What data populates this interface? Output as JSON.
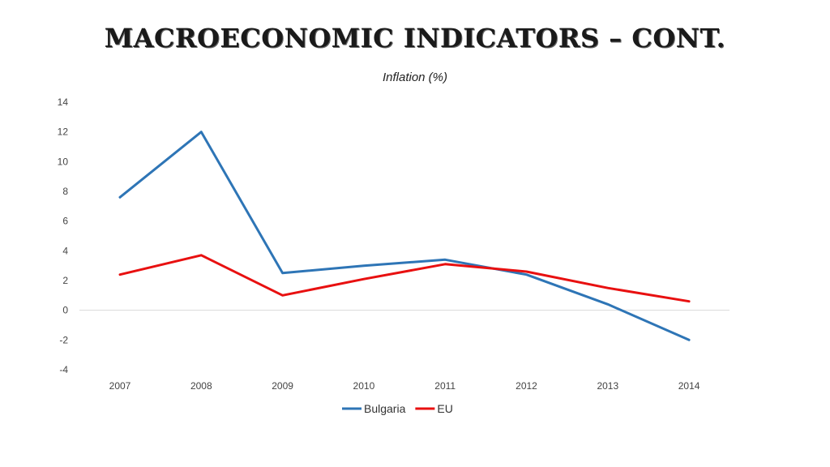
{
  "slide": {
    "title": "Macroeconomic indicators – cont."
  },
  "chart_data": {
    "type": "line",
    "title": "Inflation (%)",
    "xlabel": "",
    "ylabel": "",
    "categories": [
      "2007",
      "2008",
      "2009",
      "2010",
      "2011",
      "2012",
      "2013",
      "2014"
    ],
    "ylim": [
      -4,
      14
    ],
    "yticks": [
      -4,
      -2,
      0,
      2,
      4,
      6,
      8,
      10,
      12,
      14
    ],
    "grid": false,
    "legend_position": "bottom",
    "series": [
      {
        "name": "Bulgaria",
        "color": "#2e75b6",
        "values": [
          7.6,
          12.0,
          2.5,
          3.0,
          3.4,
          2.4,
          0.4,
          -2.0
        ]
      },
      {
        "name": "EU",
        "color": "#e81010",
        "values": [
          2.4,
          3.7,
          1.0,
          2.1,
          3.1,
          2.6,
          1.5,
          0.6
        ]
      }
    ]
  }
}
